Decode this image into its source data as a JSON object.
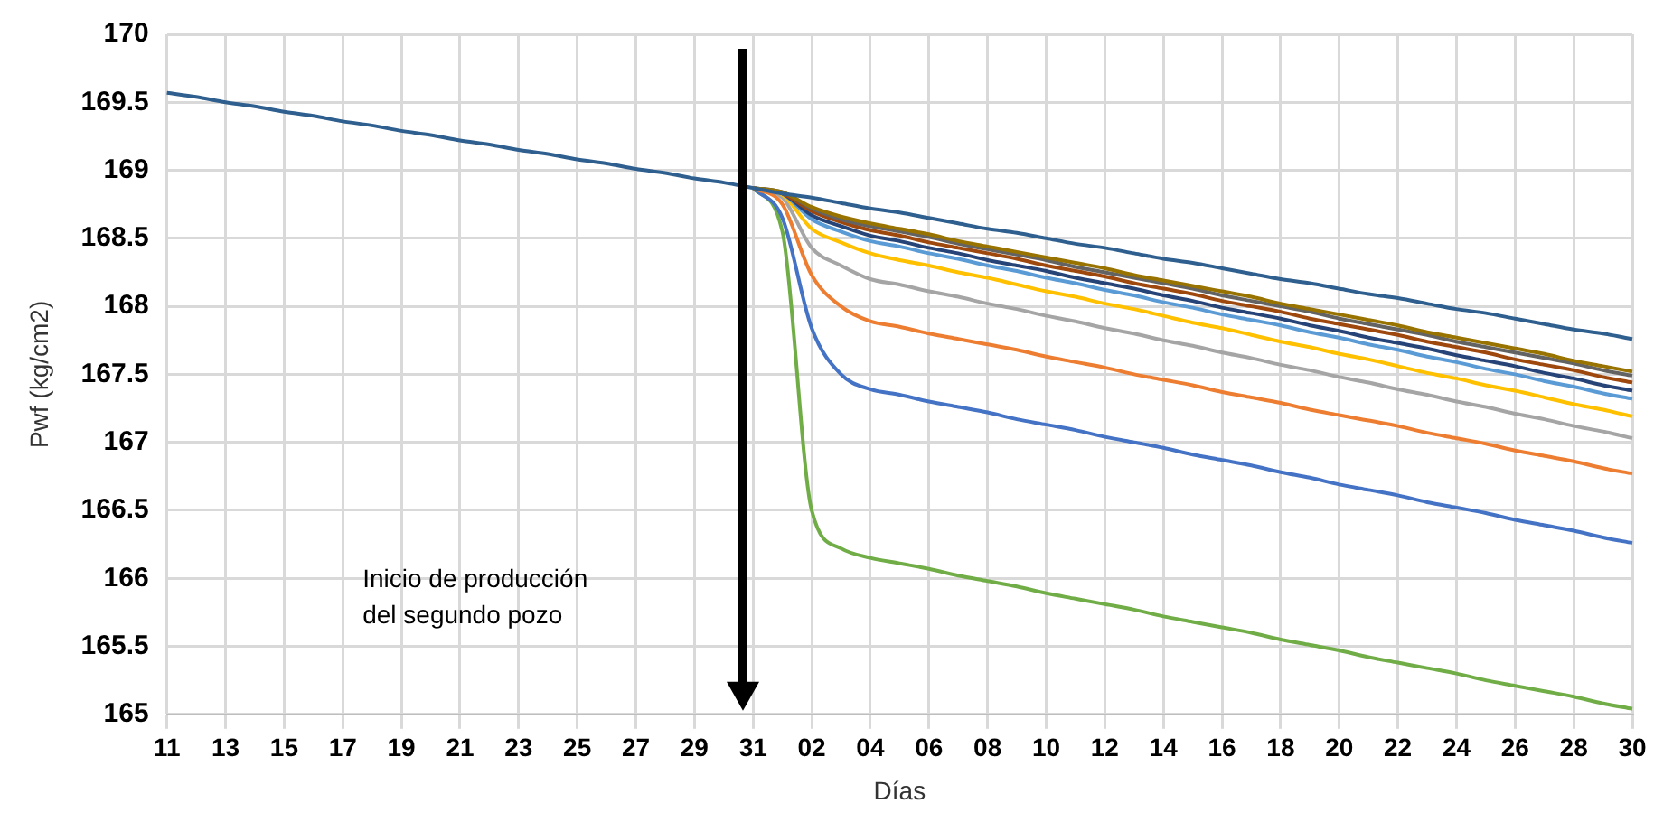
{
  "chart_data": {
    "type": "line",
    "xlabel": "Días",
    "ylabel": "Pwf (kg/cm2)",
    "categories": [
      "11",
      null,
      "13",
      null,
      "15",
      null,
      "17",
      null,
      "19",
      null,
      "21",
      null,
      "23",
      null,
      "25",
      null,
      "27",
      null,
      "29",
      null,
      "31",
      null,
      "02",
      null,
      "04",
      null,
      "06",
      null,
      "08",
      null,
      "10",
      null,
      "12",
      null,
      "14",
      null,
      "16",
      null,
      "18",
      null,
      "20",
      null,
      "22",
      null,
      "24",
      null,
      "26",
      null,
      "28",
      null,
      "30"
    ],
    "ylim": [
      165,
      170
    ],
    "yticks": [
      165,
      165.5,
      166,
      166.5,
      167,
      167.5,
      168,
      168.5,
      169,
      169.5,
      170
    ],
    "grid": true,
    "legend": false,
    "marker": "none",
    "line_style": "solid",
    "annotations": [
      "Inicio de producción del segundo pozo"
    ],
    "series": [
      {
        "color": "#2e5f8f",
        "values": [
          169.57,
          169.54,
          169.5,
          169.47,
          169.43,
          169.4,
          169.36,
          169.33,
          169.29,
          169.26,
          169.22,
          169.19,
          169.15,
          169.12,
          169.08,
          169.05,
          169.01,
          168.98,
          168.94,
          168.91,
          168.87,
          168.83,
          168.8,
          168.76,
          168.72,
          168.69,
          168.65,
          168.61,
          168.57,
          168.54,
          168.5,
          168.46,
          168.43,
          168.39,
          168.35,
          168.32,
          168.28,
          168.24,
          168.2,
          168.17,
          168.13,
          168.09,
          168.06,
          168.02,
          167.98,
          167.95,
          167.91,
          167.87,
          167.83,
          167.8,
          167.76
        ]
      },
      {
        "color": "#997300",
        "values": [
          null,
          null,
          null,
          null,
          null,
          null,
          null,
          null,
          null,
          null,
          null,
          null,
          null,
          null,
          null,
          null,
          null,
          null,
          null,
          null,
          168.87,
          168.84,
          168.73,
          168.66,
          168.61,
          168.57,
          168.53,
          168.48,
          168.44,
          168.4,
          168.36,
          168.32,
          168.28,
          168.23,
          168.19,
          168.15,
          168.11,
          168.07,
          168.02,
          167.98,
          167.94,
          167.9,
          167.86,
          167.81,
          167.77,
          167.73,
          167.69,
          167.65,
          167.6,
          167.56,
          167.52
        ]
      },
      {
        "color": "#636363",
        "values": [
          null,
          null,
          null,
          null,
          null,
          null,
          null,
          null,
          null,
          null,
          null,
          null,
          null,
          null,
          null,
          null,
          null,
          null,
          null,
          null,
          168.87,
          168.84,
          168.72,
          168.64,
          168.59,
          168.55,
          168.51,
          168.46,
          168.42,
          168.38,
          168.34,
          168.29,
          168.25,
          168.21,
          168.17,
          168.13,
          168.08,
          168.04,
          168.0,
          167.96,
          167.91,
          167.87,
          167.83,
          167.79,
          167.74,
          167.7,
          167.66,
          167.62,
          167.58,
          167.53,
          167.49
        ]
      },
      {
        "color": "#9e480e",
        "values": [
          null,
          null,
          null,
          null,
          null,
          null,
          null,
          null,
          null,
          null,
          null,
          null,
          null,
          null,
          null,
          null,
          null,
          null,
          null,
          null,
          168.87,
          168.83,
          168.7,
          168.62,
          168.56,
          168.52,
          168.47,
          168.43,
          168.39,
          168.35,
          168.3,
          168.26,
          168.22,
          168.17,
          168.13,
          168.09,
          168.04,
          168.0,
          167.96,
          167.91,
          167.87,
          167.83,
          167.79,
          167.74,
          167.7,
          167.66,
          167.61,
          167.57,
          167.53,
          167.48,
          167.44
        ]
      },
      {
        "color": "#264478",
        "values": [
          null,
          null,
          null,
          null,
          null,
          null,
          null,
          null,
          null,
          null,
          null,
          null,
          null,
          null,
          null,
          null,
          null,
          null,
          null,
          null,
          168.87,
          168.83,
          168.67,
          168.59,
          168.52,
          168.48,
          168.43,
          168.39,
          168.34,
          168.3,
          168.26,
          168.21,
          168.17,
          168.13,
          168.08,
          168.04,
          167.99,
          167.95,
          167.91,
          167.86,
          167.82,
          167.77,
          167.73,
          167.69,
          167.64,
          167.6,
          167.56,
          167.51,
          167.47,
          167.42,
          167.38
        ]
      },
      {
        "color": "#5b9bd5",
        "values": [
          null,
          null,
          null,
          null,
          null,
          null,
          null,
          null,
          null,
          null,
          null,
          null,
          null,
          null,
          null,
          null,
          null,
          null,
          null,
          null,
          168.87,
          168.83,
          168.64,
          168.55,
          168.48,
          168.44,
          168.39,
          168.35,
          168.3,
          168.26,
          168.21,
          168.17,
          168.12,
          168.08,
          168.03,
          167.99,
          167.94,
          167.9,
          167.86,
          167.81,
          167.77,
          167.72,
          167.68,
          167.63,
          167.59,
          167.54,
          167.5,
          167.45,
          167.41,
          167.36,
          167.32
        ]
      },
      {
        "color": "#ffc000",
        "values": [
          null,
          null,
          null,
          null,
          null,
          null,
          null,
          null,
          null,
          null,
          null,
          null,
          null,
          null,
          null,
          null,
          null,
          null,
          null,
          null,
          168.87,
          168.82,
          168.57,
          168.47,
          168.39,
          168.34,
          168.3,
          168.25,
          168.21,
          168.16,
          168.11,
          168.07,
          168.02,
          167.98,
          167.93,
          167.88,
          167.84,
          167.79,
          167.74,
          167.7,
          167.65,
          167.61,
          167.56,
          167.51,
          167.47,
          167.42,
          167.38,
          167.33,
          167.28,
          167.24,
          167.19
        ]
      },
      {
        "color": "#a5a5a5",
        "values": [
          null,
          null,
          null,
          null,
          null,
          null,
          null,
          null,
          null,
          null,
          null,
          null,
          null,
          null,
          null,
          null,
          null,
          null,
          null,
          null,
          168.87,
          168.8,
          168.43,
          168.3,
          168.2,
          168.16,
          168.11,
          168.07,
          168.02,
          167.98,
          167.93,
          167.89,
          167.84,
          167.8,
          167.75,
          167.71,
          167.66,
          167.62,
          167.57,
          167.53,
          167.48,
          167.44,
          167.39,
          167.35,
          167.3,
          167.26,
          167.21,
          167.17,
          167.12,
          167.08,
          167.03
        ]
      },
      {
        "color": "#ed7d31",
        "values": [
          null,
          null,
          null,
          null,
          null,
          null,
          null,
          null,
          null,
          null,
          null,
          null,
          null,
          null,
          null,
          null,
          null,
          null,
          null,
          null,
          168.87,
          168.75,
          168.23,
          168.0,
          167.89,
          167.85,
          167.8,
          167.76,
          167.72,
          167.68,
          167.63,
          167.59,
          167.55,
          167.5,
          167.46,
          167.42,
          167.37,
          167.33,
          167.29,
          167.24,
          167.2,
          167.16,
          167.12,
          167.07,
          167.03,
          166.99,
          166.94,
          166.9,
          166.86,
          166.81,
          166.77
        ]
      },
      {
        "color": "#4472c4",
        "values": [
          null,
          null,
          null,
          null,
          null,
          null,
          null,
          null,
          null,
          null,
          null,
          null,
          null,
          null,
          null,
          null,
          null,
          null,
          null,
          null,
          168.87,
          168.65,
          167.84,
          167.5,
          167.39,
          167.35,
          167.3,
          167.26,
          167.22,
          167.17,
          167.13,
          167.09,
          167.04,
          167.0,
          166.96,
          166.91,
          166.87,
          166.83,
          166.78,
          166.74,
          166.69,
          166.65,
          166.61,
          166.56,
          166.52,
          166.48,
          166.43,
          166.39,
          166.35,
          166.3,
          166.26
        ]
      },
      {
        "color": "#70ad47",
        "values": [
          null,
          null,
          null,
          null,
          null,
          null,
          null,
          null,
          null,
          null,
          null,
          null,
          null,
          null,
          null,
          null,
          null,
          null,
          null,
          null,
          168.87,
          168.55,
          166.5,
          166.22,
          166.15,
          166.11,
          166.07,
          166.02,
          165.98,
          165.94,
          165.89,
          165.85,
          165.81,
          165.77,
          165.72,
          165.68,
          165.64,
          165.6,
          165.55,
          165.51,
          165.47,
          165.42,
          165.38,
          165.34,
          165.3,
          165.25,
          165.21,
          165.17,
          165.13,
          165.08,
          165.04
        ]
      }
    ]
  }
}
